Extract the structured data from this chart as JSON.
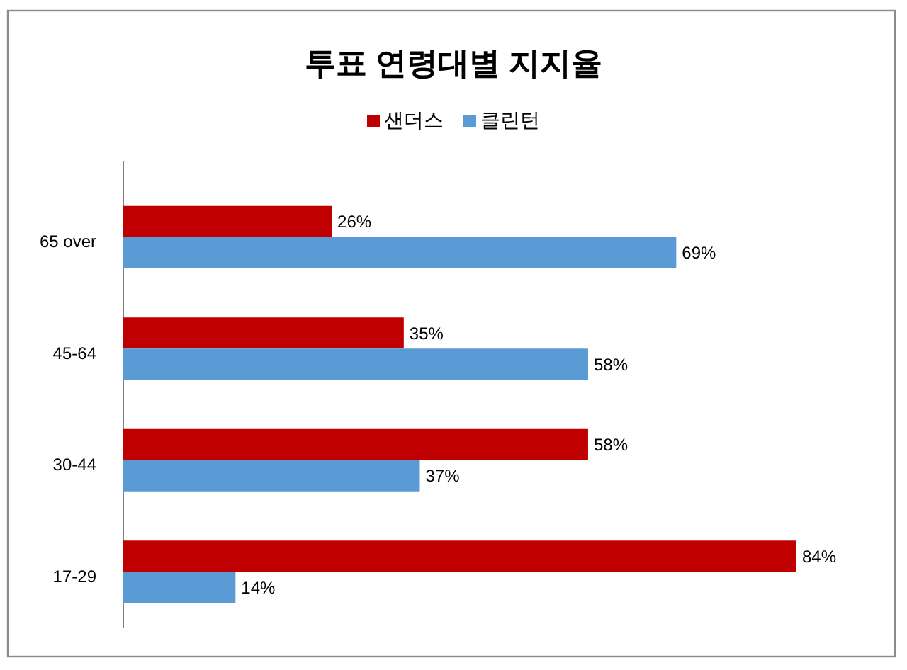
{
  "chart_data": {
    "type": "bar",
    "orientation": "horizontal",
    "title": "투표 연령대별 지지율",
    "legend": "top",
    "categories": [
      "65 over",
      "45-64",
      "30-44",
      "17-29"
    ],
    "series": [
      {
        "name": "샌더스",
        "color": "#c00000",
        "values": [
          26,
          35,
          58,
          84
        ],
        "value_labels": [
          "26%",
          "35%",
          "58%",
          "84%"
        ]
      },
      {
        "name": "클린턴",
        "color": "#5b9bd5",
        "values": [
          69,
          58,
          37,
          14
        ],
        "value_labels": [
          "69%",
          "58%",
          "37%",
          "14%"
        ]
      }
    ]
  }
}
